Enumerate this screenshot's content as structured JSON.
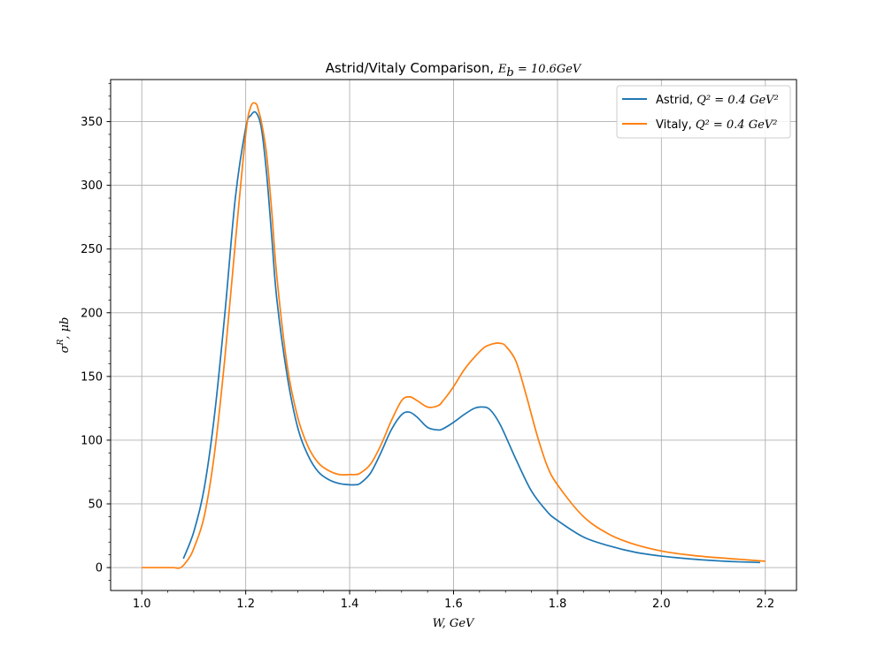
{
  "chart_data": {
    "type": "line",
    "title": "Astrid/Vitaly Comparison, ",
    "title_math": "E",
    "title_math_sub": "b",
    "title_math_rest": " = 10.6GeV",
    "xlabel": "W, GeV",
    "ylabel": "σ",
    "ylabel_sup": "R",
    "ylabel_rest": ", μb",
    "xlim": [
      0.94,
      2.26
    ],
    "ylim": [
      -18,
      383
    ],
    "x_ticks": [
      1.0,
      1.2,
      1.4,
      1.6,
      1.8,
      2.0,
      2.2
    ],
    "x_tick_labels": [
      "1.0",
      "1.2",
      "1.4",
      "1.6",
      "1.8",
      "2.0",
      "2.2"
    ],
    "y_ticks": [
      0,
      50,
      100,
      150,
      200,
      250,
      300,
      350
    ],
    "y_tick_labels": [
      "0",
      "50",
      "100",
      "150",
      "200",
      "250",
      "300",
      "350"
    ],
    "grid": true,
    "legend_position": "top-right",
    "series": [
      {
        "name": "Astrid, ",
        "name_math": "Q² = 0.4 GeV²",
        "color": "#1f77b4",
        "x": [
          1.08,
          1.1,
          1.12,
          1.14,
          1.16,
          1.18,
          1.2,
          1.21,
          1.22,
          1.23,
          1.24,
          1.25,
          1.26,
          1.28,
          1.3,
          1.32,
          1.34,
          1.36,
          1.38,
          1.4,
          1.41,
          1.42,
          1.44,
          1.46,
          1.48,
          1.5,
          1.515,
          1.53,
          1.55,
          1.57,
          1.58,
          1.6,
          1.62,
          1.64,
          1.655,
          1.67,
          1.69,
          1.72,
          1.75,
          1.78,
          1.8,
          1.85,
          1.9,
          1.95,
          2.0,
          2.05,
          2.1,
          2.15,
          2.19
        ],
        "y": [
          7,
          28,
          62,
          120,
          200,
          290,
          345,
          355,
          357,
          345,
          310,
          260,
          210,
          150,
          110,
          88,
          75,
          69,
          66,
          65,
          65,
          66,
          74,
          90,
          108,
          120,
          122,
          118,
          110,
          108,
          109,
          114,
          120,
          125,
          126,
          124,
          112,
          85,
          60,
          44,
          37,
          24,
          17,
          12,
          9,
          7,
          5.5,
          4.5,
          4
        ]
      },
      {
        "name": "Vitaly, ",
        "name_math": "Q² = 0.4 GeV²",
        "color": "#ff7f0e",
        "x": [
          1.0,
          1.02,
          1.04,
          1.06,
          1.075,
          1.09,
          1.1,
          1.12,
          1.14,
          1.16,
          1.18,
          1.2,
          1.21,
          1.22,
          1.225,
          1.23,
          1.24,
          1.25,
          1.26,
          1.28,
          1.3,
          1.32,
          1.34,
          1.36,
          1.38,
          1.4,
          1.41,
          1.42,
          1.44,
          1.46,
          1.48,
          1.5,
          1.515,
          1.53,
          1.55,
          1.57,
          1.58,
          1.6,
          1.62,
          1.64,
          1.66,
          1.68,
          1.69,
          1.7,
          1.72,
          1.74,
          1.76,
          1.78,
          1.8,
          1.85,
          1.9,
          1.95,
          2.0,
          2.05,
          2.1,
          2.15,
          2.2
        ],
        "y": [
          0,
          0,
          0,
          0,
          0,
          7,
          15,
          40,
          90,
          165,
          255,
          340,
          362,
          364,
          358,
          350,
          325,
          280,
          228,
          158,
          118,
          95,
          82,
          76,
          73,
          73,
          73,
          74,
          81,
          96,
          115,
          131,
          134,
          131,
          126,
          127,
          131,
          142,
          155,
          165,
          173,
          176,
          176,
          174,
          162,
          135,
          105,
          80,
          65,
          40,
          26,
          18,
          13,
          10,
          8,
          6.5,
          5
        ]
      }
    ]
  }
}
